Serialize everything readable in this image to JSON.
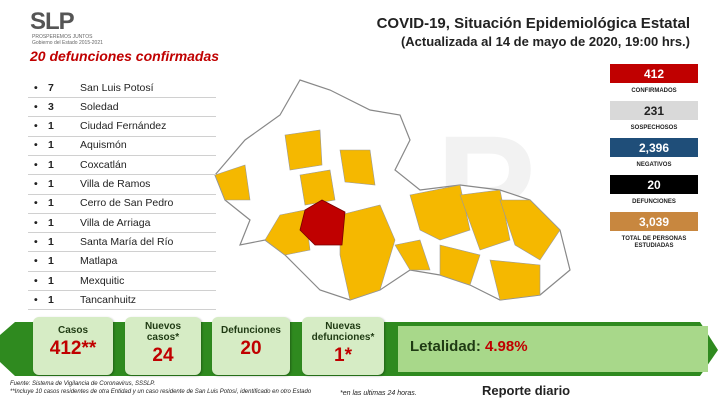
{
  "logo": {
    "text": "SLP",
    "tagline": "PROSPEREMOS JUNTOS",
    "government": "Gobierno del Estado 2015-2021"
  },
  "header": {
    "title": "COVID-19, Situación Epidemiológica Estatal",
    "subtitle": "(Actualizada al 14 de mayo de 2020, 19:00 hrs.)"
  },
  "deaths": {
    "title": "20 defunciones confirmadas",
    "rows": [
      [
        "7",
        "San Luis Potosí"
      ],
      [
        "3",
        "Soledad"
      ],
      [
        "1",
        "Ciudad Fernández"
      ],
      [
        "1",
        "Aquismón"
      ],
      [
        "1",
        "Coxcatlán"
      ],
      [
        "1",
        "Villa de Ramos"
      ],
      [
        "1",
        "Cerro de San Pedro"
      ],
      [
        "1",
        "Villa de Arriaga"
      ],
      [
        "1",
        "Santa María del Río"
      ],
      [
        "1",
        "Matlapa"
      ],
      [
        "1",
        "Mexquitic"
      ],
      [
        "1",
        "Tancanhuitz"
      ]
    ]
  },
  "stats": [
    {
      "value": "412",
      "label": "CONFIRMADOS"
    },
    {
      "value": "231",
      "label": "SOSPECHOSOS"
    },
    {
      "value": "2,396",
      "label": "NEGATIVOS"
    },
    {
      "value": "20",
      "label": "DEFUNCIONES"
    },
    {
      "value": "3,039",
      "label": "TOTAL DE PERSONAS ESTUDIADAS"
    }
  ],
  "summary": [
    {
      "label": "Casos",
      "value": "412**"
    },
    {
      "label": "Nuevos casos*",
      "value": "24"
    },
    {
      "label": "Defunciones",
      "value": "20"
    },
    {
      "label": "Nuevas defunciones*",
      "value": "1*"
    }
  ],
  "lethality": {
    "label": "Letalidad:",
    "value": "4.98%"
  },
  "footer": {
    "source": "Fuente: Sistema de Vigilancia de Coronavirus, SSSLP.",
    "note": "**Incluye 10 casos residentes de otra Entidad y un caso residente de San Luis Potosí, identificado en otro Estado",
    "last24": "*en las ultimas 24 horas.",
    "report": "Reporte diario"
  }
}
